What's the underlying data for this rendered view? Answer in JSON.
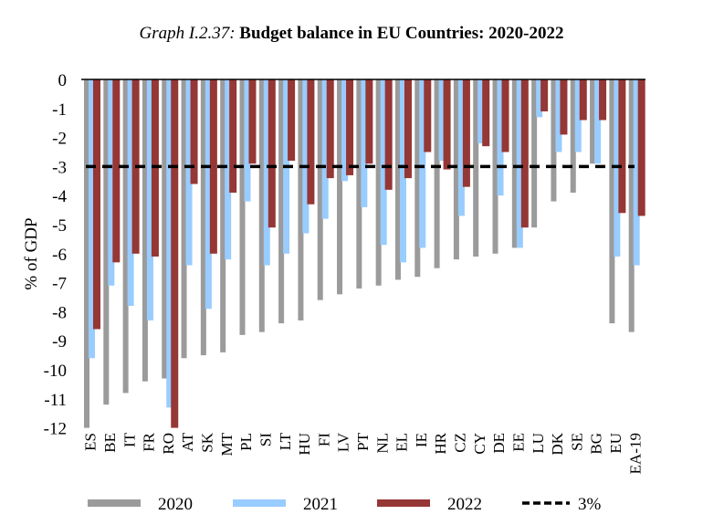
{
  "title_prefix": "Graph I.2.37:",
  "title_main": "Budget balance in EU Countries: 2020-2022",
  "chart_data": {
    "type": "bar",
    "title": "Graph I.2.37: Budget balance in EU Countries: 2020-2022",
    "xlabel": "",
    "ylabel": "% of GDP",
    "ylim": [
      -12,
      0
    ],
    "yticks": [
      0,
      -1,
      -2,
      -3,
      -4,
      -5,
      -6,
      -7,
      -8,
      -9,
      -10,
      -11,
      -12
    ],
    "grid": false,
    "legend_position": "bottom",
    "categories": [
      "ES",
      "BE",
      "IT",
      "FR",
      "RO",
      "AT",
      "SK",
      "MT",
      "PL",
      "SI",
      "LT",
      "HU",
      "FI",
      "LV",
      "PT",
      "NL",
      "EL",
      "IE",
      "HR",
      "CZ",
      "CY",
      "DE",
      "EE",
      "LU",
      "DK",
      "SE",
      "BG",
      "EU",
      "EA-19"
    ],
    "series": [
      {
        "name": "2020",
        "color": "#9b9b9b",
        "values": [
          -12.0,
          -11.2,
          -10.8,
          -10.4,
          -10.3,
          -9.6,
          -9.5,
          -9.4,
          -8.8,
          -8.7,
          -8.4,
          -8.3,
          -7.6,
          -7.4,
          -7.2,
          -7.1,
          -6.9,
          -6.8,
          -6.5,
          -6.2,
          -6.1,
          -6.0,
          -5.8,
          -5.1,
          -4.2,
          -3.9,
          -2.9,
          -8.4,
          -8.7
        ]
      },
      {
        "name": "2021",
        "color": "#99ccff",
        "values": [
          -9.6,
          -7.1,
          -7.8,
          -8.3,
          -11.3,
          -6.4,
          -7.9,
          -6.2,
          -4.2,
          -6.4,
          -6.0,
          -5.3,
          -4.8,
          -3.5,
          -4.4,
          -5.7,
          -6.3,
          -5.8,
          -2.8,
          -4.7,
          -2.2,
          -4.0,
          -5.8,
          -1.3,
          -2.5,
          -2.5,
          -2.9,
          -6.1,
          -6.4
        ]
      },
      {
        "name": "2022",
        "color": "#953735",
        "values": [
          -8.6,
          -6.3,
          -6.0,
          -6.1,
          -12.0,
          -3.6,
          -6.0,
          -3.9,
          -2.9,
          -5.1,
          -2.8,
          -4.3,
          -3.4,
          -3.3,
          -2.9,
          -3.8,
          -3.4,
          -2.5,
          -3.1,
          -3.7,
          -2.3,
          -2.5,
          -5.1,
          -1.1,
          -1.9,
          -1.4,
          -1.4,
          -4.6,
          -4.7
        ]
      }
    ],
    "reference_line": {
      "name": "3%",
      "value": -3,
      "style": "dashed",
      "color": "#000000"
    }
  },
  "legend": [
    {
      "label": "2020",
      "color": "#9b9b9b",
      "kind": "bar"
    },
    {
      "label": "2021",
      "color": "#99ccff",
      "kind": "bar"
    },
    {
      "label": "2022",
      "color": "#953735",
      "kind": "bar"
    },
    {
      "label": "3%",
      "color": "#000000",
      "kind": "dashed-line"
    }
  ]
}
